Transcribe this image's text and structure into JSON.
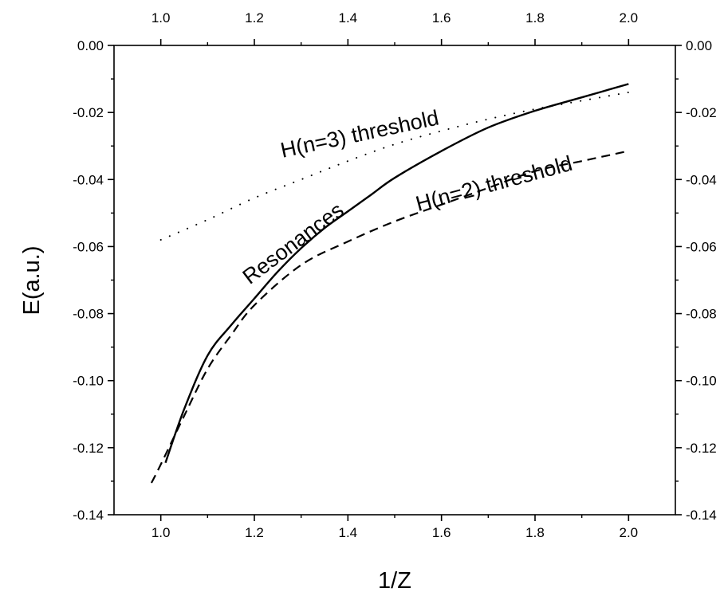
{
  "chart_data": {
    "type": "line",
    "title": "",
    "xlabel": "1/Z",
    "ylabel": "E(a.u.)",
    "xlim": [
      0.9,
      2.1
    ],
    "ylim": [
      -0.14,
      0.0
    ],
    "x_ticks": [
      1.0,
      1.2,
      1.4,
      1.6,
      1.8,
      2.0
    ],
    "x_tick_labels": [
      "1.0",
      "1.2",
      "1.4",
      "1.6",
      "1.8",
      "2.0"
    ],
    "y_ticks": [
      0.0,
      -0.02,
      -0.04,
      -0.06,
      -0.08,
      -0.1,
      -0.12,
      -0.14
    ],
    "y_tick_labels": [
      "0.00",
      "-0.02",
      "-0.04",
      "-0.06",
      "-0.08",
      "-0.10",
      "-0.12",
      "-0.14"
    ],
    "frame": "box with ticks and labels on all four sides",
    "grid": false,
    "legend": "none",
    "series": [
      {
        "style": "solid",
        "x": [
          1.01,
          1.05,
          1.1,
          1.15,
          1.2,
          1.25,
          1.3,
          1.35,
          1.4,
          1.45,
          1.5,
          1.6,
          1.7,
          1.8,
          1.9,
          2.0
        ],
        "y": [
          -0.1245,
          -0.1085,
          -0.0925,
          -0.0835,
          -0.0755,
          -0.0675,
          -0.0605,
          -0.0545,
          -0.0495,
          -0.0445,
          -0.0395,
          -0.0315,
          -0.0245,
          -0.0195,
          -0.0155,
          -0.0115
        ]
      },
      {
        "style": "dashed",
        "x": [
          0.98,
          1.0,
          1.05,
          1.1,
          1.15,
          1.2,
          1.3,
          1.4,
          1.5,
          1.6,
          1.7,
          1.8,
          1.9,
          2.0
        ],
        "y": [
          -0.1305,
          -0.125,
          -0.1105,
          -0.0965,
          -0.0865,
          -0.0775,
          -0.0655,
          -0.0585,
          -0.0525,
          -0.0475,
          -0.0425,
          -0.0375,
          -0.0345,
          -0.0315
        ]
      },
      {
        "style": "dotted",
        "x": [
          1.0,
          1.1,
          1.2,
          1.3,
          1.4,
          1.5,
          1.6,
          1.7,
          1.8,
          1.9,
          2.0
        ],
        "y": [
          -0.058,
          -0.052,
          -0.0455,
          -0.04,
          -0.0345,
          -0.0295,
          -0.0255,
          -0.022,
          -0.019,
          -0.0165,
          -0.014
        ]
      }
    ],
    "annotations": [
      {
        "text": "H(n=3) threshold",
        "x": 1.26,
        "y": -0.0335,
        "rotate": -12
      },
      {
        "text": "Resonances",
        "x": 1.19,
        "y": -0.0715,
        "rotate": -37
      },
      {
        "text": "H(n=2) threshold",
        "x": 1.55,
        "y": -0.0495,
        "rotate": -15
      }
    ]
  }
}
